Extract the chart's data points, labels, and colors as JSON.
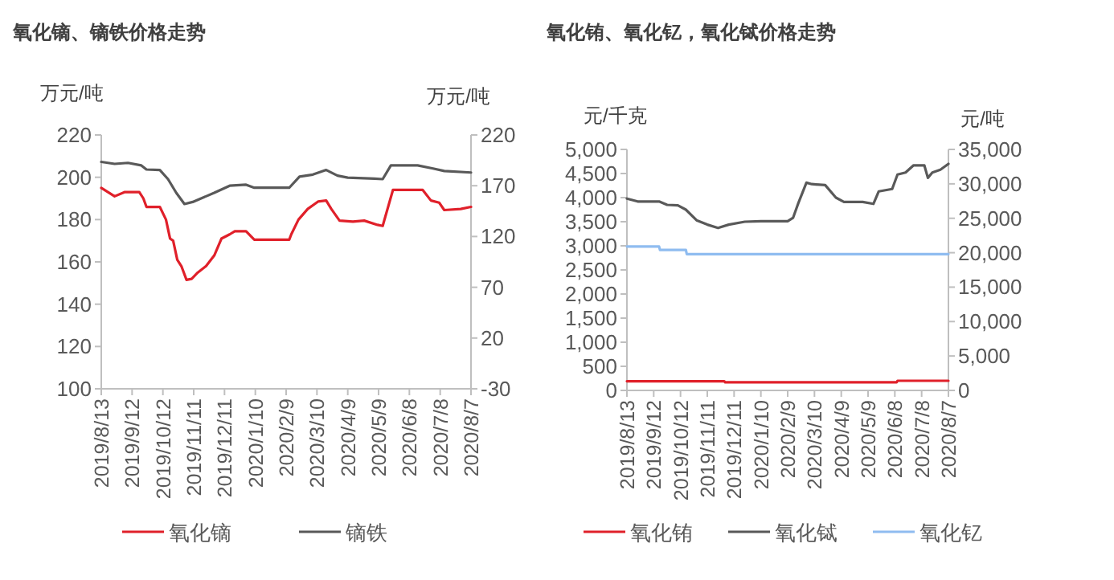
{
  "chart_data": [
    {
      "type": "line",
      "title": "氧化镝、镝铁价格走势",
      "ylabel": "万元/吨",
      "y2label": "万元/吨",
      "legend": "bottom",
      "grid": false,
      "xlim": [
        "2019-08-13",
        "2020-08-07"
      ],
      "xticks": [
        {
          "value": "2019-08-13",
          "label": "2019/8/13"
        },
        {
          "value": "2019-09-12",
          "label": "2019/9/12"
        },
        {
          "value": "2019-10-12",
          "label": "2019/10/12"
        },
        {
          "value": "2019-11-11",
          "label": "2019/11/11"
        },
        {
          "value": "2019-12-11",
          "label": "2019/12/11"
        },
        {
          "value": "2020-01-10",
          "label": "2020/1/10"
        },
        {
          "value": "2020-02-09",
          "label": "2020/2/9"
        },
        {
          "value": "2020-03-10",
          "label": "2020/3/10"
        },
        {
          "value": "2020-04-09",
          "label": "2020/4/9"
        },
        {
          "value": "2020-05-09",
          "label": "2020/5/9"
        },
        {
          "value": "2020-06-08",
          "label": "2020/6/8"
        },
        {
          "value": "2020-07-08",
          "label": "2020/7/8"
        },
        {
          "value": "2020-08-07",
          "label": "2020/8/7"
        }
      ],
      "ylim": [
        100,
        220
      ],
      "yticks": [
        100,
        120,
        140,
        160,
        180,
        200,
        220
      ],
      "y2lim": [
        -30,
        220
      ],
      "y2ticks": [
        -30,
        20,
        70,
        120,
        170,
        220
      ],
      "series": [
        {
          "name": "氧化镝",
          "color": "#e0202a",
          "axis": "y",
          "x": [
            "2019-08-13",
            "2019-08-26",
            "2019-09-05",
            "2019-09-19",
            "2019-09-23",
            "2019-09-26",
            "2019-10-09",
            "2019-10-15",
            "2019-10-19",
            "2019-10-22",
            "2019-10-26",
            "2019-10-30",
            "2019-11-04",
            "2019-11-09",
            "2019-11-15",
            "2019-11-23",
            "2019-12-01",
            "2019-12-08",
            "2019-12-16",
            "2019-12-21",
            "2020-01-01",
            "2020-01-09",
            "2020-02-12",
            "2020-02-14",
            "2020-02-21",
            "2020-03-01",
            "2020-03-11",
            "2020-03-19",
            "2020-03-24",
            "2020-04-01",
            "2020-04-14",
            "2020-04-25",
            "2020-05-08",
            "2020-05-13",
            "2020-05-23",
            "2020-06-21",
            "2020-06-29",
            "2020-07-07",
            "2020-07-12",
            "2020-07-28",
            "2020-08-07"
          ],
          "values": [
            195,
            191,
            193,
            193,
            190,
            186,
            186,
            180,
            171,
            170,
            161,
            158,
            151.5,
            152,
            155,
            158,
            163,
            171,
            173,
            174.5,
            174.5,
            170.5,
            170.5,
            173,
            180,
            185,
            188.5,
            189,
            185,
            179.5,
            179,
            179.5,
            177.5,
            177,
            194,
            194,
            189,
            188,
            184.5,
            185,
            186
          ]
        },
        {
          "name": "镝铁",
          "color": "#595959",
          "axis": "y2",
          "x": [
            "2019-08-13",
            "2019-08-26",
            "2019-09-08",
            "2019-09-21",
            "2019-09-26",
            "2019-10-09",
            "2019-10-17",
            "2019-10-25",
            "2019-11-02",
            "2019-11-10",
            "2019-12-01",
            "2019-12-16",
            "2020-01-01",
            "2020-01-09",
            "2020-02-12",
            "2020-02-22",
            "2020-03-06",
            "2020-03-19",
            "2020-03-30",
            "2020-04-09",
            "2020-05-05",
            "2020-05-13",
            "2020-05-21",
            "2020-06-16",
            "2020-07-01",
            "2020-07-12",
            "2020-08-07"
          ],
          "values": [
            193.5,
            191.5,
            192.5,
            190,
            186,
            185.5,
            176.5,
            163,
            152,
            154,
            163,
            170,
            171,
            168,
            168,
            179,
            181,
            185.5,
            180,
            178,
            177,
            176.5,
            190,
            190,
            187,
            184.5,
            183
          ]
        }
      ]
    },
    {
      "type": "line",
      "title": "氧化铕、氧化钇，氧化铽价格走势",
      "ylabel": "元/千克",
      "y2label": "元/吨",
      "legend": "bottom",
      "grid": false,
      "xlim": [
        "2019-08-13",
        "2020-08-07"
      ],
      "xticks": [
        {
          "value": "2019-08-13",
          "label": "2019/8/13"
        },
        {
          "value": "2019-09-12",
          "label": "2019/9/12"
        },
        {
          "value": "2019-10-12",
          "label": "2019/10/12"
        },
        {
          "value": "2019-11-11",
          "label": "2019/11/11"
        },
        {
          "value": "2019-12-11",
          "label": "2019/12/11"
        },
        {
          "value": "2020-01-10",
          "label": "2020/1/10"
        },
        {
          "value": "2020-02-09",
          "label": "2020/2/9"
        },
        {
          "value": "2020-03-10",
          "label": "2020/3/10"
        },
        {
          "value": "2020-04-09",
          "label": "2020/4/9"
        },
        {
          "value": "2020-05-09",
          "label": "2020/5/9"
        },
        {
          "value": "2020-06-08",
          "label": "2020/6/8"
        },
        {
          "value": "2020-07-08",
          "label": "2020/7/8"
        },
        {
          "value": "2020-08-07",
          "label": "2020/8/7"
        }
      ],
      "ylim": [
        0,
        5000
      ],
      "yticks": [
        0,
        {
          "value": 500,
          "label": "500"
        },
        {
          "value": 1000,
          "label": "1,000"
        },
        {
          "value": 1500,
          "label": "1,500"
        },
        {
          "value": 2000,
          "label": "2,000"
        },
        {
          "value": 2500,
          "label": "2,500"
        },
        {
          "value": 3000,
          "label": "3,000"
        },
        {
          "value": 3500,
          "label": "3,500"
        },
        {
          "value": 4000,
          "label": "4,000"
        },
        {
          "value": 4500,
          "label": "4,500"
        },
        {
          "value": 5000,
          "label": "5,000"
        }
      ],
      "y2lim": [
        0,
        35000
      ],
      "y2ticks": [
        0,
        {
          "value": 5000,
          "label": "5,000"
        },
        {
          "value": 10000,
          "label": "10,000"
        },
        {
          "value": 15000,
          "label": "15,000"
        },
        {
          "value": 20000,
          "label": "20,000"
        },
        {
          "value": 25000,
          "label": "25,000"
        },
        {
          "value": 30000,
          "label": "30,000"
        },
        {
          "value": 35000,
          "label": "35,000"
        }
      ],
      "series": [
        {
          "name": "氧化铕",
          "color": "#e0202a",
          "axis": "y",
          "x": [
            "2019-08-13",
            "2019-11-30",
            "2019-12-01",
            "2020-06-10",
            "2020-06-11",
            "2020-08-07"
          ],
          "values": [
            190,
            190,
            170,
            170,
            200,
            200
          ]
        },
        {
          "name": "氧化铽",
          "color": "#595959",
          "axis": "y",
          "x": [
            "2019-08-13",
            "2019-08-25",
            "2019-09-18",
            "2019-09-27",
            "2019-10-09",
            "2019-10-18",
            "2019-10-30",
            "2019-11-11",
            "2019-11-23",
            "2019-12-05",
            "2019-12-23",
            "2020-01-10",
            "2020-02-09",
            "2020-02-15",
            "2020-02-21",
            "2020-03-01",
            "2020-03-07",
            "2020-03-22",
            "2020-04-03",
            "2020-04-12",
            "2020-05-03",
            "2020-05-15",
            "2020-05-21",
            "2020-06-05",
            "2020-06-11",
            "2020-06-20",
            "2020-06-29",
            "2020-07-11",
            "2020-07-15",
            "2020-07-20",
            "2020-07-29",
            "2020-08-07"
          ],
          "values": [
            3980,
            3920,
            3920,
            3850,
            3840,
            3750,
            3530,
            3440,
            3370,
            3440,
            3500,
            3510,
            3510,
            3580,
            3890,
            4310,
            4280,
            4260,
            4000,
            3910,
            3910,
            3870,
            4130,
            4180,
            4480,
            4520,
            4670,
            4670,
            4410,
            4520,
            4580,
            4700
          ]
        },
        {
          "name": "氧化钇",
          "color": "#8fbcf0",
          "axis": "y2",
          "x": [
            "2019-08-13",
            "2019-09-18",
            "2019-09-19",
            "2019-10-18",
            "2019-10-19",
            "2020-08-07"
          ],
          "values": [
            20900,
            20900,
            20400,
            20400,
            19800,
            19800
          ]
        }
      ]
    }
  ]
}
